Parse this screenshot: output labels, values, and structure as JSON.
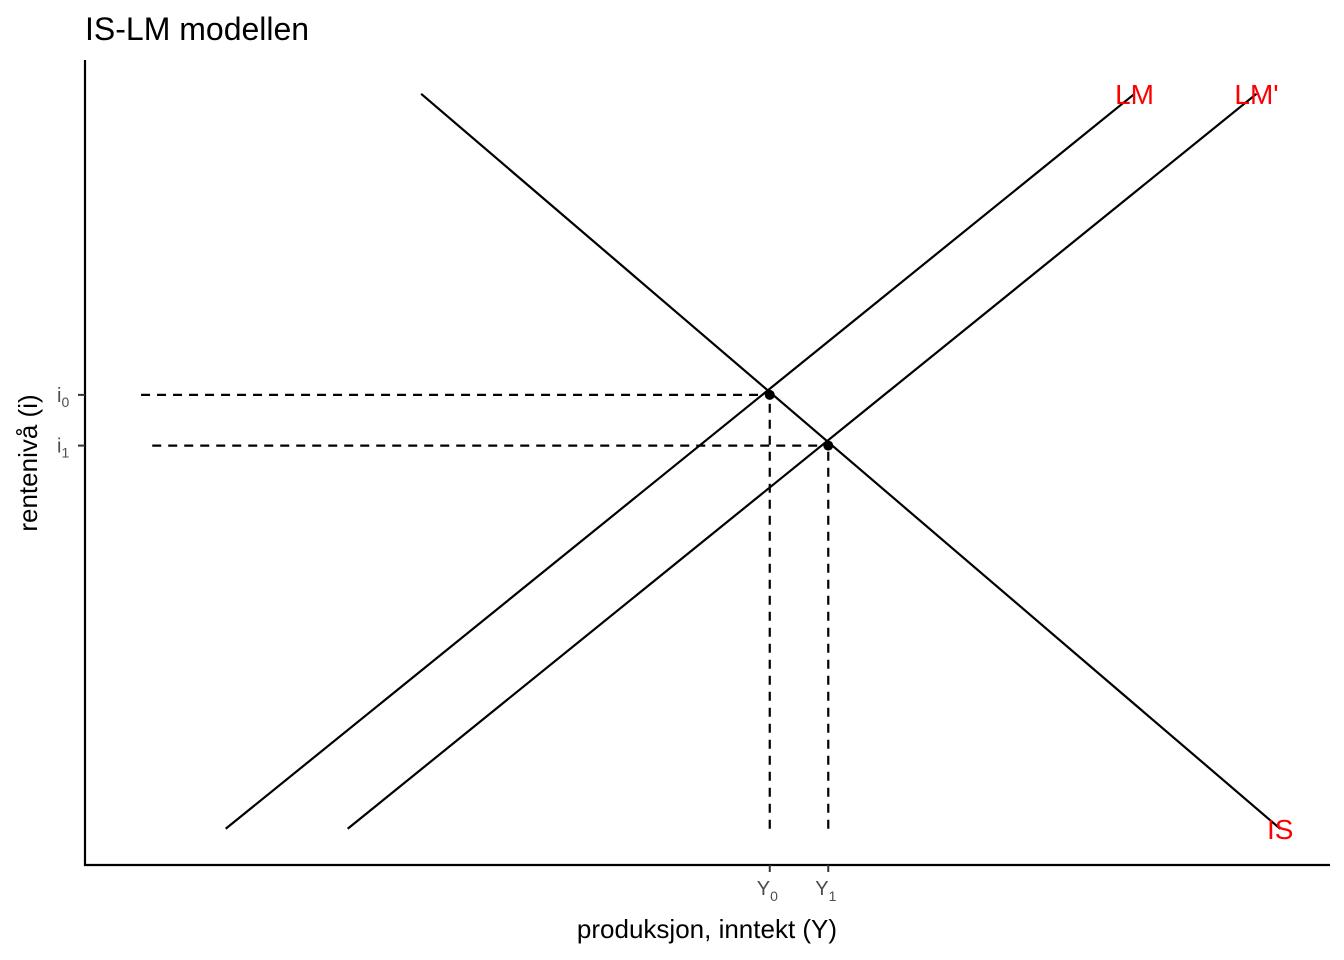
{
  "chart_data": {
    "type": "line",
    "title": "IS-LM modellen",
    "xlabel": "produksjon, inntekt (Y)",
    "ylabel": "rentenivå (i)",
    "xlim": [
      0,
      10
    ],
    "ylim": [
      0,
      10
    ],
    "grid": false,
    "series": [
      {
        "name": "LM",
        "color": "#000000",
        "label_color": "#ff0000",
        "points": [
          [
            1.13,
            0.45
          ],
          [
            8.43,
            9.58
          ]
        ]
      },
      {
        "name": "LM'",
        "color": "#000000",
        "label_color": "#ff0000",
        "points": [
          [
            2.11,
            0.45
          ],
          [
            9.41,
            9.58
          ]
        ]
      },
      {
        "name": "IS",
        "color": "#000000",
        "label_color": "#ff0000",
        "points": [
          [
            2.7,
            9.58
          ],
          [
            9.6,
            0.45
          ]
        ]
      }
    ],
    "label_positions": [
      {
        "series": "LM",
        "x": 8.43,
        "y": 9.58
      },
      {
        "series": "LM'",
        "x": 9.41,
        "y": 9.58
      },
      {
        "series": "IS",
        "x": 9.6,
        "y": 0.45
      }
    ],
    "equilibria": [
      {
        "x": 5.5,
        "y": 5.84
      },
      {
        "x": 5.97,
        "y": 5.21
      }
    ],
    "x_ticks": [
      {
        "value": 5.5,
        "base": "Y",
        "sub": "0"
      },
      {
        "value": 5.97,
        "base": "Y",
        "sub": "1"
      }
    ],
    "y_ticks": [
      {
        "value": 5.84,
        "base": "i",
        "sub": "0"
      },
      {
        "value": 5.21,
        "base": "i",
        "sub": "1"
      }
    ],
    "guides": {
      "horizontal": [
        {
          "y": 5.84,
          "x_from": 0.45,
          "x_to": 5.5
        },
        {
          "y": 5.21,
          "x_from": 0.54,
          "x_to": 5.97
        }
      ],
      "vertical": [
        {
          "x": 5.5,
          "y_from": 0.45,
          "y_to": 5.84
        },
        {
          "x": 5.97,
          "y_from": 0.45,
          "y_to": 5.21
        }
      ]
    }
  }
}
